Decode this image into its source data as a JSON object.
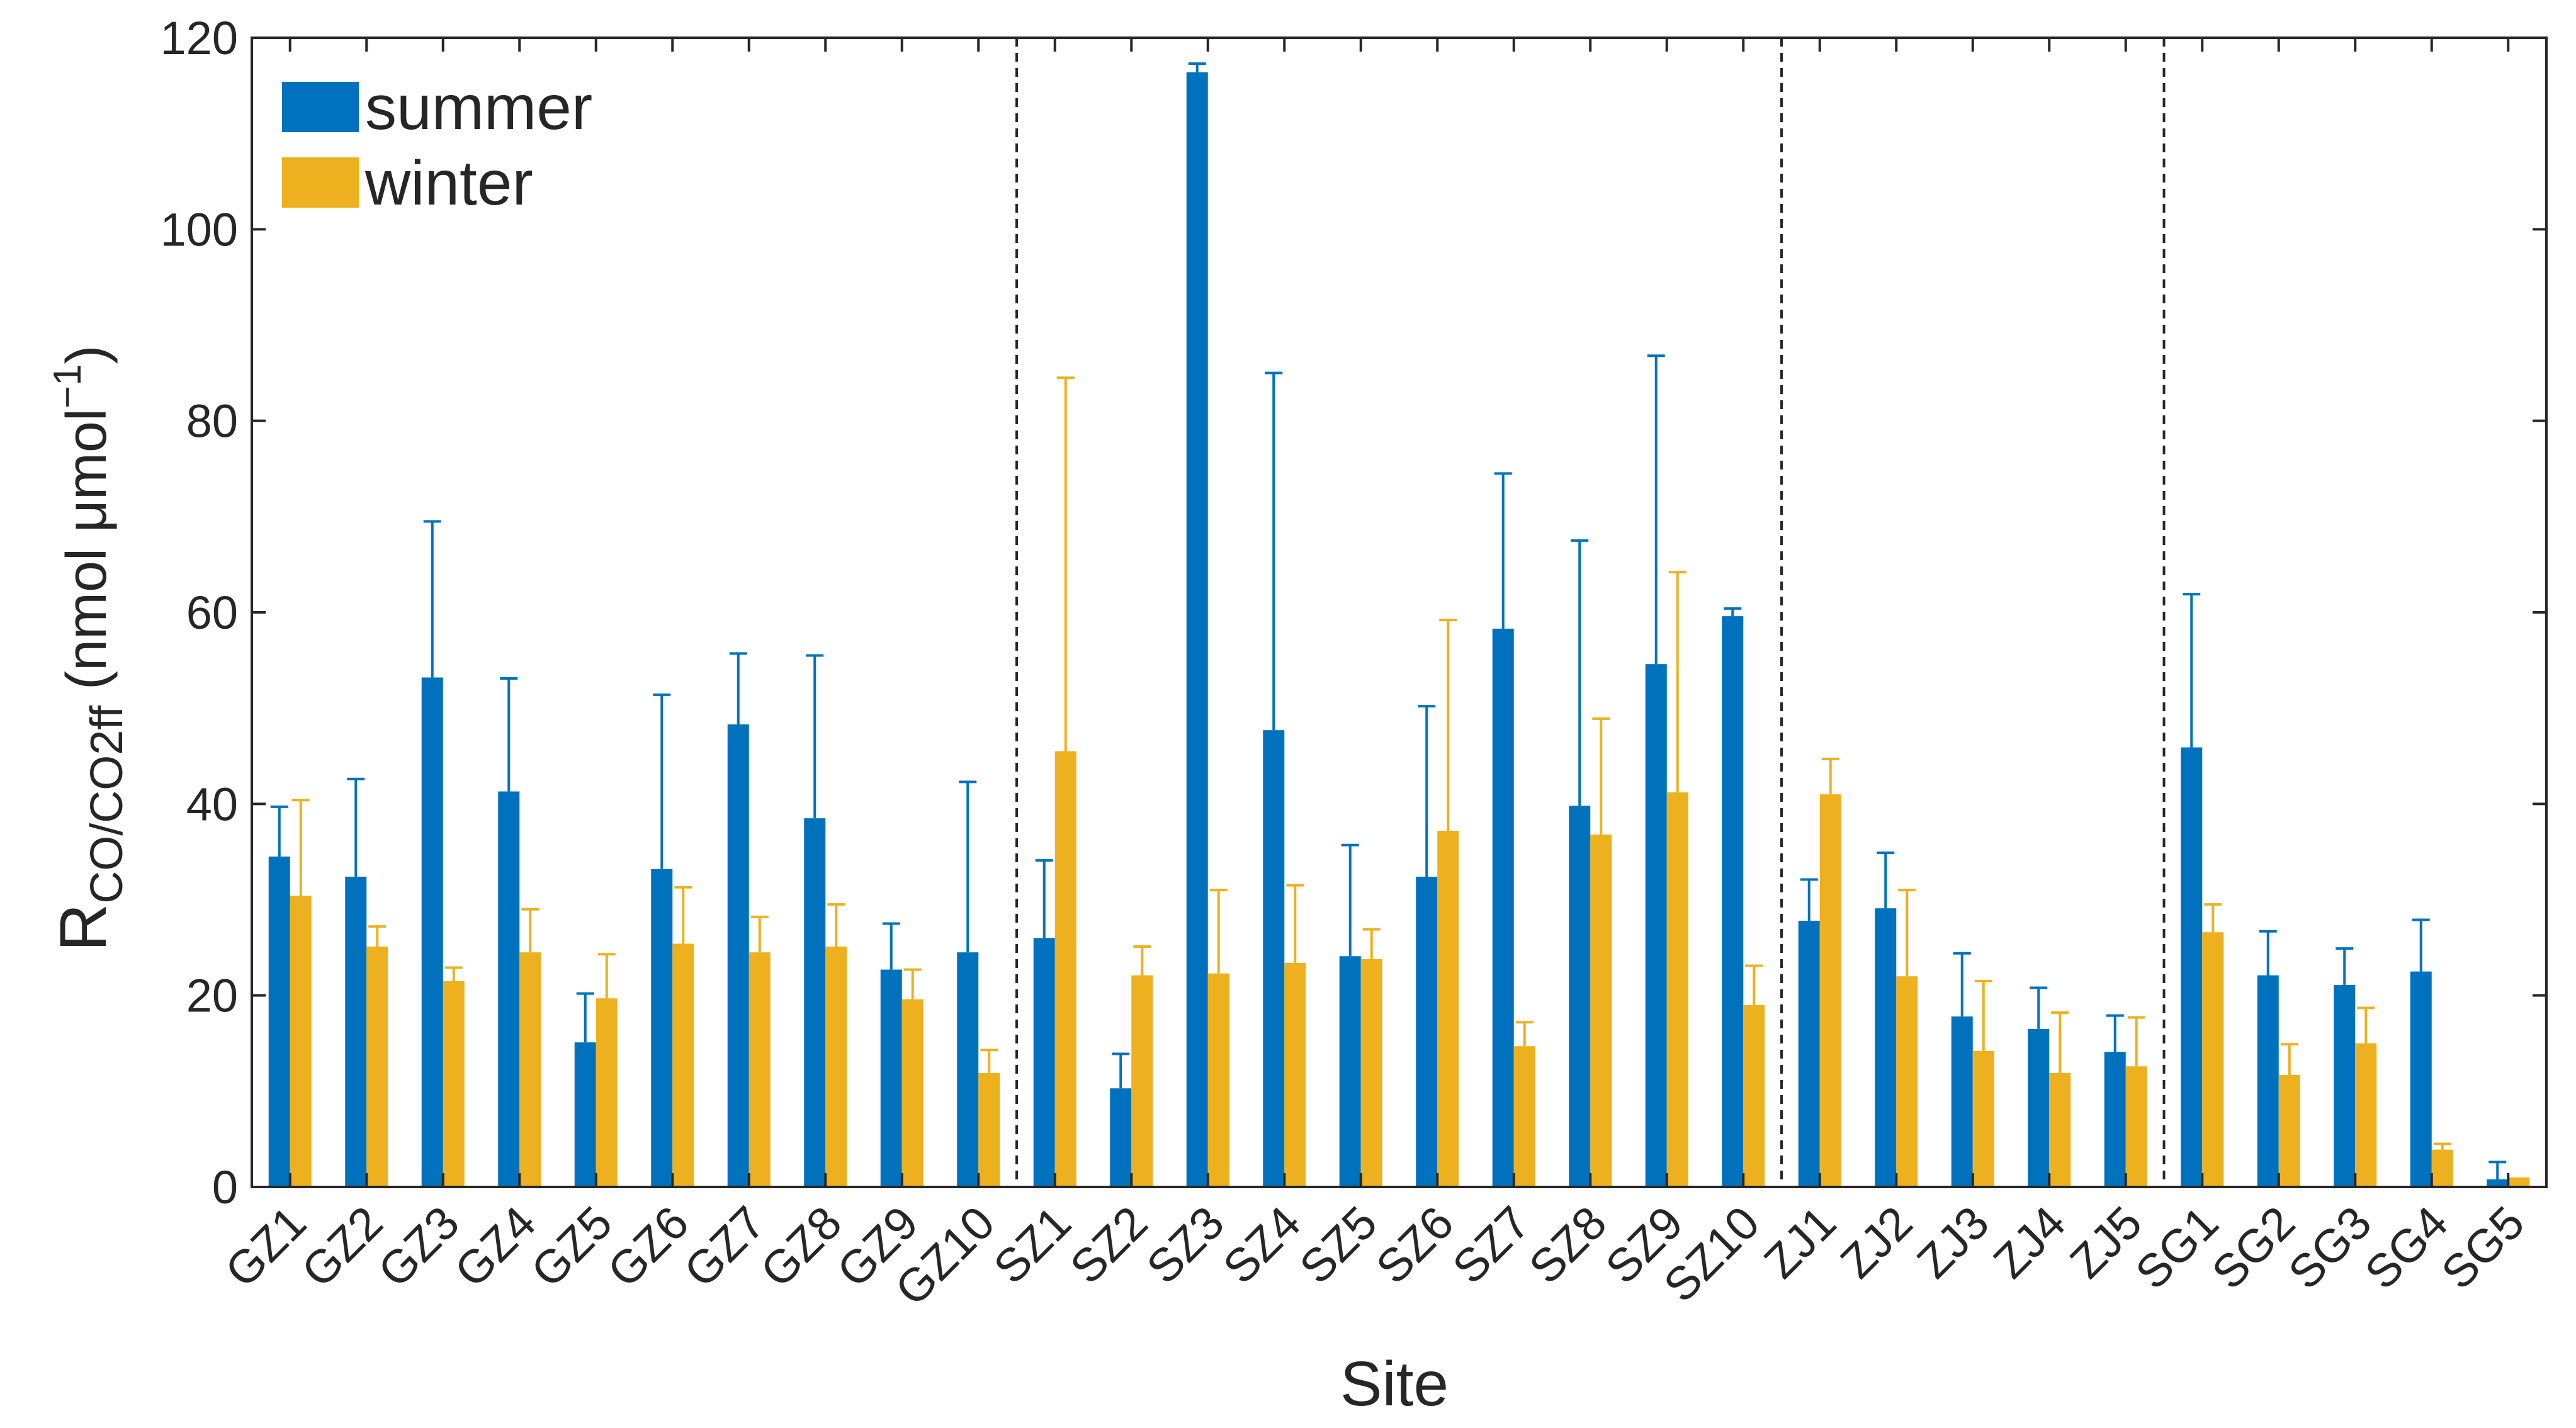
{
  "chart_data": {
    "type": "bar",
    "xlabel": "Site",
    "ylabel_main": "R",
    "ylabel_sub": "CO/CO2ff",
    "ylabel_unit_prefix": " (nmol μmol",
    "ylabel_unit_sup": "−1",
    "ylabel_unit_suffix": ")",
    "ylim": [
      0,
      120
    ],
    "yticks": [
      0,
      20,
      40,
      60,
      80,
      100,
      120
    ],
    "grid": false,
    "legend_position": "top-left",
    "group_separators_after": [
      "GZ10",
      "SZ10",
      "ZJ5"
    ],
    "categories": [
      "GZ1",
      "GZ2",
      "GZ3",
      "GZ4",
      "GZ5",
      "GZ6",
      "GZ7",
      "GZ8",
      "GZ9",
      "GZ10",
      "SZ1",
      "SZ2",
      "SZ3",
      "SZ4",
      "SZ5",
      "SZ6",
      "SZ7",
      "SZ8",
      "SZ9",
      "SZ10",
      "ZJ1",
      "ZJ2",
      "ZJ3",
      "ZJ4",
      "ZJ5",
      "SG1",
      "SG2",
      "SG3",
      "SG4",
      "SG5"
    ],
    "series": [
      {
        "name": "summer",
        "color": "#0072BD",
        "values": [
          34.5,
          32.4,
          53.2,
          41.3,
          15.1,
          33.2,
          48.3,
          38.5,
          22.7,
          24.5,
          26.0,
          10.3,
          116.4,
          47.7,
          24.1,
          32.4,
          58.3,
          39.8,
          54.6,
          59.6,
          27.8,
          29.1,
          17.8,
          16.5,
          14.1,
          45.9,
          22.1,
          21.1,
          22.5,
          0.8
        ],
        "error_upper": [
          39.7,
          42.6,
          69.5,
          53.1,
          20.2,
          51.4,
          55.7,
          55.5,
          27.5,
          42.3,
          34.1,
          13.9,
          117.3,
          85.0,
          35.7,
          50.2,
          74.5,
          67.5,
          86.8,
          60.4,
          32.1,
          34.9,
          24.4,
          20.8,
          17.9,
          61.9,
          26.7,
          24.9,
          27.9,
          2.6
        ]
      },
      {
        "name": "winter",
        "color": "#EDB120",
        "values": [
          30.4,
          25.1,
          21.5,
          24.5,
          19.7,
          25.4,
          24.5,
          25.1,
          19.6,
          11.9,
          45.5,
          22.1,
          22.3,
          23.4,
          23.8,
          37.2,
          14.7,
          36.8,
          41.2,
          19.0,
          41.0,
          22.0,
          14.2,
          11.9,
          12.6,
          26.6,
          11.7,
          15.0,
          3.9,
          1.0
        ],
        "error_upper": [
          40.4,
          27.2,
          22.9,
          29.0,
          24.3,
          31.3,
          28.2,
          29.5,
          22.7,
          14.3,
          84.5,
          25.1,
          31.0,
          31.5,
          26.9,
          59.2,
          17.2,
          48.9,
          64.2,
          23.1,
          44.7,
          31.0,
          21.5,
          18.2,
          17.7,
          29.5,
          14.9,
          18.7,
          4.5,
          1.0
        ]
      }
    ]
  }
}
